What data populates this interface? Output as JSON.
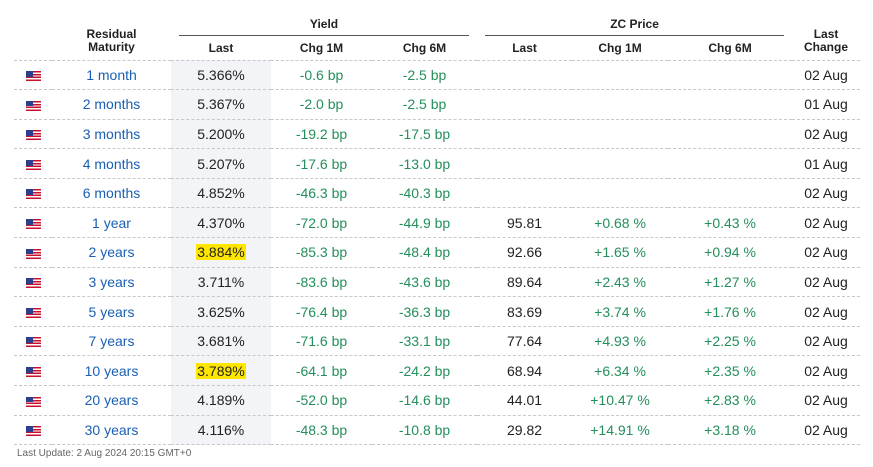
{
  "header": {
    "residual_maturity": "Residual Maturity",
    "yield_group": "Yield",
    "zc_group": "ZC Price",
    "last_change": "Last Change",
    "yield_last": "Last",
    "yield_chg1m": "Chg 1M",
    "yield_chg6m": "Chg 6M",
    "zc_last": "Last",
    "zc_chg1m": "Chg 1M",
    "zc_chg6m": "Chg 6M"
  },
  "flag_icon": "us-flag-icon",
  "colors": {
    "maturity_link": "#1a5fb4",
    "change_green": "#238f5a",
    "highlight": "#ffe600",
    "last_column_bg": "#f2f4f7"
  },
  "rows": [
    {
      "maturity": "1 month",
      "yield_last": "5.366%",
      "yield_chg1m": "-0.6 bp",
      "yield_chg6m": "-2.5 bp",
      "zc_last": "",
      "zc_chg1m": "",
      "zc_chg6m": "",
      "last_change": "02 Aug",
      "highlight": false
    },
    {
      "maturity": "2 months",
      "yield_last": "5.367%",
      "yield_chg1m": "-2.0 bp",
      "yield_chg6m": "-2.5 bp",
      "zc_last": "",
      "zc_chg1m": "",
      "zc_chg6m": "",
      "last_change": "01 Aug",
      "highlight": false
    },
    {
      "maturity": "3 months",
      "yield_last": "5.200%",
      "yield_chg1m": "-19.2 bp",
      "yield_chg6m": "-17.5 bp",
      "zc_last": "",
      "zc_chg1m": "",
      "zc_chg6m": "",
      "last_change": "02 Aug",
      "highlight": false
    },
    {
      "maturity": "4 months",
      "yield_last": "5.207%",
      "yield_chg1m": "-17.6 bp",
      "yield_chg6m": "-13.0 bp",
      "zc_last": "",
      "zc_chg1m": "",
      "zc_chg6m": "",
      "last_change": "01 Aug",
      "highlight": false
    },
    {
      "maturity": "6 months",
      "yield_last": "4.852%",
      "yield_chg1m": "-46.3 bp",
      "yield_chg6m": "-40.3 bp",
      "zc_last": "",
      "zc_chg1m": "",
      "zc_chg6m": "",
      "last_change": "02 Aug",
      "highlight": false
    },
    {
      "maturity": "1 year",
      "yield_last": "4.370%",
      "yield_chg1m": "-72.0 bp",
      "yield_chg6m": "-44.9 bp",
      "zc_last": "95.81",
      "zc_chg1m": "+0.68 %",
      "zc_chg6m": "+0.43 %",
      "last_change": "02 Aug",
      "highlight": false
    },
    {
      "maturity": "2 years",
      "yield_last": "3.884%",
      "yield_chg1m": "-85.3 bp",
      "yield_chg6m": "-48.4 bp",
      "zc_last": "92.66",
      "zc_chg1m": "+1.65 %",
      "zc_chg6m": "+0.94 %",
      "last_change": "02 Aug",
      "highlight": true
    },
    {
      "maturity": "3 years",
      "yield_last": "3.711%",
      "yield_chg1m": "-83.6 bp",
      "yield_chg6m": "-43.6 bp",
      "zc_last": "89.64",
      "zc_chg1m": "+2.43 %",
      "zc_chg6m": "+1.27 %",
      "last_change": "02 Aug",
      "highlight": false
    },
    {
      "maturity": "5 years",
      "yield_last": "3.625%",
      "yield_chg1m": "-76.4 bp",
      "yield_chg6m": "-36.3 bp",
      "zc_last": "83.69",
      "zc_chg1m": "+3.74 %",
      "zc_chg6m": "+1.76 %",
      "last_change": "02 Aug",
      "highlight": false
    },
    {
      "maturity": "7 years",
      "yield_last": "3.681%",
      "yield_chg1m": "-71.6 bp",
      "yield_chg6m": "-33.1 bp",
      "zc_last": "77.64",
      "zc_chg1m": "+4.93 %",
      "zc_chg6m": "+2.25 %",
      "last_change": "02 Aug",
      "highlight": false
    },
    {
      "maturity": "10 years",
      "yield_last": "3.789%",
      "yield_chg1m": "-64.1 bp",
      "yield_chg6m": "-24.2 bp",
      "zc_last": "68.94",
      "zc_chg1m": "+6.34 %",
      "zc_chg6m": "+2.35 %",
      "last_change": "02 Aug",
      "highlight": true
    },
    {
      "maturity": "20 years",
      "yield_last": "4.189%",
      "yield_chg1m": "-52.0 bp",
      "yield_chg6m": "-14.6 bp",
      "zc_last": "44.01",
      "zc_chg1m": "+10.47 %",
      "zc_chg6m": "+2.83 %",
      "last_change": "02 Aug",
      "highlight": false
    },
    {
      "maturity": "30 years",
      "yield_last": "4.116%",
      "yield_chg1m": "-48.3 bp",
      "yield_chg6m": "-10.8 bp",
      "zc_last": "29.82",
      "zc_chg1m": "+14.91 %",
      "zc_chg6m": "+3.18 %",
      "last_change": "02 Aug",
      "highlight": false
    }
  ],
  "footer": {
    "last_update": "Last Update: 2 Aug 2024 20:15 GMT+0"
  }
}
